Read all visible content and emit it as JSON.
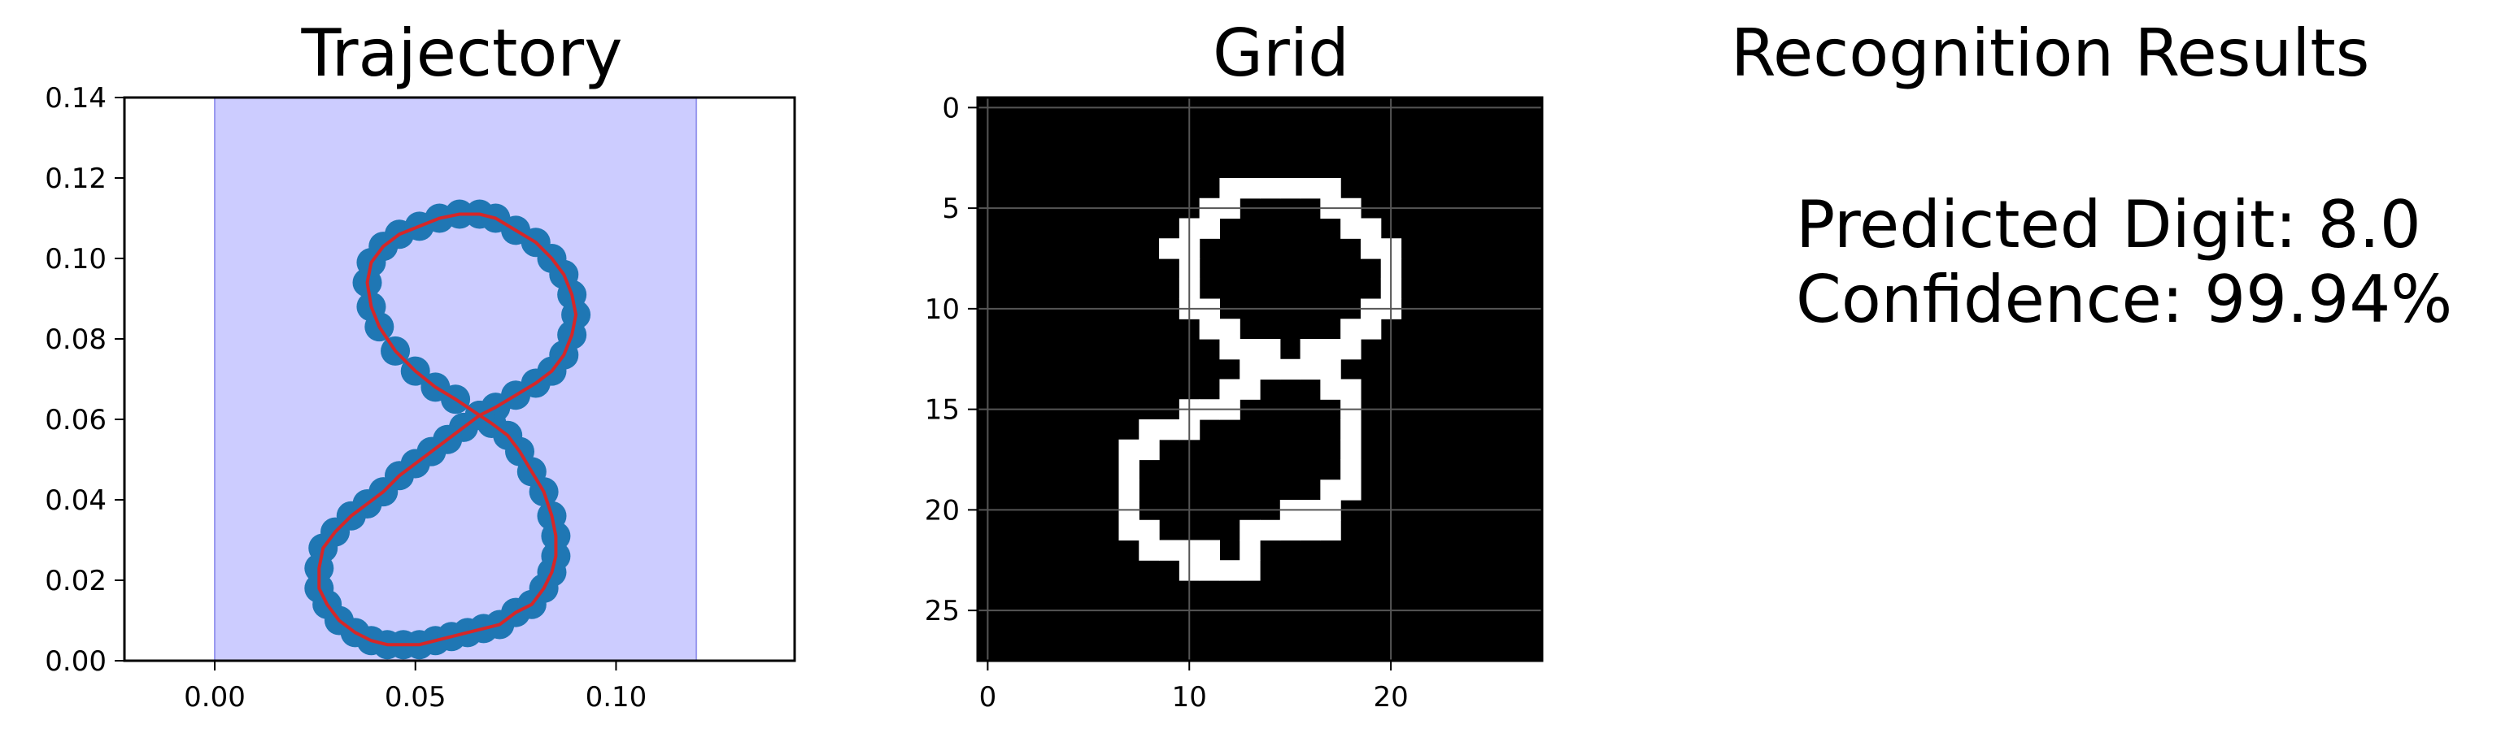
{
  "chart_data": [
    {
      "type": "line",
      "title": "Trajectory",
      "xlabel": "",
      "ylabel": "",
      "xlim": [
        -0.0225,
        0.1445
      ],
      "ylim": [
        0.0,
        0.14
      ],
      "xticks": [
        {
          "value": 0.0,
          "label": "0.00"
        },
        {
          "value": 0.05,
          "label": "0.05"
        },
        {
          "value": 0.1,
          "label": "0.10"
        }
      ],
      "yticks": [
        {
          "value": 0.0,
          "label": "0.00"
        },
        {
          "value": 0.02,
          "label": "0.02"
        },
        {
          "value": 0.04,
          "label": "0.04"
        },
        {
          "value": 0.06,
          "label": "0.06"
        },
        {
          "value": 0.08,
          "label": "0.08"
        },
        {
          "value": 0.1,
          "label": "0.10"
        },
        {
          "value": 0.12,
          "label": "0.12"
        },
        {
          "value": 0.14,
          "label": "0.14"
        }
      ],
      "shaded_x_range": [
        0.0,
        0.12
      ],
      "grid": false,
      "colors": {
        "shade": "#ccccff",
        "shade_edge": "#9999ee",
        "points": "#1f77b4",
        "line": "#d62728"
      },
      "series": [
        {
          "x": [
            0.066,
            0.06,
            0.055,
            0.05,
            0.045,
            0.041,
            0.039,
            0.038,
            0.039,
            0.042,
            0.046,
            0.051,
            0.056,
            0.061,
            0.066,
            0.07,
            0.075,
            0.08,
            0.084,
            0.087,
            0.089,
            0.09,
            0.089,
            0.087,
            0.084,
            0.08,
            0.075,
            0.07,
            0.066,
            0.062,
            0.058,
            0.054,
            0.05,
            0.046,
            0.042,
            0.038,
            0.034,
            0.03,
            0.027,
            0.026,
            0.026,
            0.028,
            0.031,
            0.035,
            0.039,
            0.043,
            0.047,
            0.051,
            0.055,
            0.059,
            0.063,
            0.067,
            0.071,
            0.075,
            0.079,
            0.082,
            0.084,
            0.085,
            0.085,
            0.084,
            0.082,
            0.079,
            0.076,
            0.073,
            0.069,
            0.066
          ],
          "y": [
            0.061,
            0.065,
            0.068,
            0.072,
            0.077,
            0.083,
            0.088,
            0.094,
            0.099,
            0.103,
            0.106,
            0.108,
            0.11,
            0.111,
            0.111,
            0.11,
            0.107,
            0.104,
            0.1,
            0.096,
            0.091,
            0.086,
            0.081,
            0.076,
            0.072,
            0.069,
            0.066,
            0.063,
            0.061,
            0.058,
            0.055,
            0.052,
            0.049,
            0.046,
            0.042,
            0.039,
            0.036,
            0.032,
            0.028,
            0.023,
            0.018,
            0.014,
            0.01,
            0.007,
            0.005,
            0.004,
            0.004,
            0.004,
            0.005,
            0.006,
            0.007,
            0.008,
            0.009,
            0.012,
            0.014,
            0.018,
            0.022,
            0.026,
            0.031,
            0.036,
            0.042,
            0.047,
            0.052,
            0.056,
            0.059,
            0.061
          ]
        }
      ]
    },
    {
      "type": "heatmap",
      "title": "Grid",
      "xlim": [
        -0.5,
        27.5
      ],
      "ylim": [
        27.5,
        -0.5
      ],
      "xticks": [
        {
          "value": 0,
          "label": "0"
        },
        {
          "value": 10,
          "label": "10"
        },
        {
          "value": 20,
          "label": "20"
        }
      ],
      "yticks": [
        {
          "value": 0,
          "label": "0"
        },
        {
          "value": 5,
          "label": "5"
        },
        {
          "value": 10,
          "label": "10"
        },
        {
          "value": 15,
          "label": "15"
        },
        {
          "value": 20,
          "label": "20"
        },
        {
          "value": 25,
          "label": "25"
        }
      ],
      "grid": true,
      "colors": {
        "off": "#000000",
        "on": "#ffffff",
        "gridline": "#555555"
      },
      "on_cells": [
        [
          4,
          12
        ],
        [
          4,
          13
        ],
        [
          4,
          14
        ],
        [
          4,
          15
        ],
        [
          4,
          16
        ],
        [
          4,
          17
        ],
        [
          5,
          11
        ],
        [
          5,
          12
        ],
        [
          5,
          17
        ],
        [
          5,
          18
        ],
        [
          6,
          10
        ],
        [
          6,
          11
        ],
        [
          6,
          18
        ],
        [
          6,
          19
        ],
        [
          7,
          9
        ],
        [
          7,
          10
        ],
        [
          7,
          19
        ],
        [
          7,
          20
        ],
        [
          8,
          10
        ],
        [
          8,
          20
        ],
        [
          9,
          10
        ],
        [
          9,
          20
        ],
        [
          10,
          10
        ],
        [
          10,
          11
        ],
        [
          10,
          19
        ],
        [
          10,
          20
        ],
        [
          11,
          11
        ],
        [
          11,
          12
        ],
        [
          11,
          18
        ],
        [
          11,
          19
        ],
        [
          12,
          12
        ],
        [
          12,
          13
        ],
        [
          12,
          14
        ],
        [
          12,
          16
        ],
        [
          12,
          17
        ],
        [
          12,
          18
        ],
        [
          13,
          13
        ],
        [
          13,
          14
        ],
        [
          13,
          15
        ],
        [
          13,
          16
        ],
        [
          13,
          17
        ],
        [
          14,
          12
        ],
        [
          14,
          13
        ],
        [
          14,
          17
        ],
        [
          14,
          18
        ],
        [
          15,
          10
        ],
        [
          15,
          11
        ],
        [
          15,
          12
        ],
        [
          15,
          18
        ],
        [
          16,
          8
        ],
        [
          16,
          9
        ],
        [
          16,
          10
        ],
        [
          16,
          18
        ],
        [
          17,
          7
        ],
        [
          17,
          8
        ],
        [
          17,
          18
        ],
        [
          18,
          7
        ],
        [
          18,
          18
        ],
        [
          19,
          7
        ],
        [
          19,
          17
        ],
        [
          19,
          18
        ],
        [
          20,
          7
        ],
        [
          20,
          15
        ],
        [
          20,
          16
        ],
        [
          20,
          17
        ],
        [
          21,
          7
        ],
        [
          21,
          8
        ],
        [
          21,
          13
        ],
        [
          21,
          14
        ],
        [
          21,
          15
        ],
        [
          21,
          16
        ],
        [
          21,
          17
        ],
        [
          22,
          8
        ],
        [
          22,
          9
        ],
        [
          22,
          10
        ],
        [
          22,
          11
        ],
        [
          22,
          13
        ],
        [
          23,
          10
        ],
        [
          23,
          11
        ],
        [
          23,
          12
        ],
        [
          23,
          13
        ]
      ]
    }
  ],
  "results": {
    "title": "Recognition Results",
    "predicted_label": "Predicted Digit: 8.0",
    "confidence_label": "Confidence: 99.94%"
  }
}
